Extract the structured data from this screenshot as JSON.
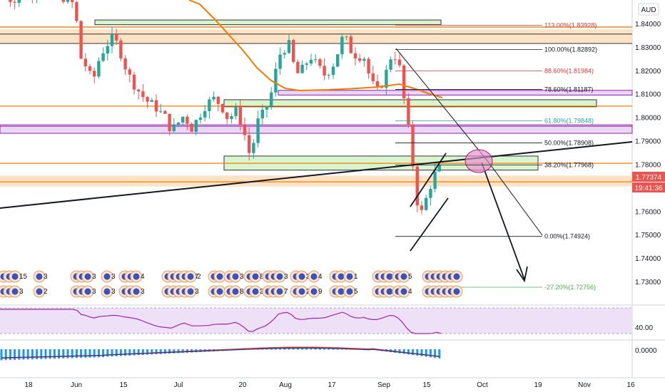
{
  "currency": "AUD",
  "last_price": "1.77374",
  "countdown": "19:41:36",
  "colors": {
    "up": "#26a69a",
    "down": "#ef5350",
    "ma": "#f57c00",
    "hline": "#f57c00",
    "orange_zone": "#fde0c0",
    "green_zone": "#d8f5d0",
    "purple_zone": "#ead6f5",
    "rsi": "#9c27b0",
    "macd_hist": "#2196f3",
    "macd_line": "#e53935",
    "price_tag": "#ef5350",
    "fib_red": "#e53935",
    "fib_teal": "#26a69a",
    "fib_green": "#4caf50"
  },
  "chart_data": {
    "type": "candlestick",
    "currency": "AUD",
    "y_ticks": [
      "1.84000",
      "1.83000",
      "1.82000",
      "1.81000",
      "1.80000",
      "1.79000",
      "1.78000",
      "1.77000",
      "1.76000",
      "1.75000",
      "1.74000",
      "1.73000"
    ],
    "ylim": [
      1.7255,
      1.8465
    ],
    "x_labels": [
      "18",
      "Jun",
      "15",
      "Jul",
      "20",
      "Aug",
      "17",
      "Sep",
      "15",
      "Oct",
      "19",
      "Nov",
      "16"
    ],
    "fib_levels": [
      {
        "ratio": "113.00%",
        "price": "1.83928",
        "color": "red"
      },
      {
        "ratio": "100.00%",
        "price": "1.82892",
        "color": "black"
      },
      {
        "ratio": "88.60%",
        "price": "1.81984",
        "color": "red"
      },
      {
        "ratio": "78.60%",
        "price": "1.81187",
        "color": "black"
      },
      {
        "ratio": "61.80%",
        "price": "1.79848",
        "color": "teal"
      },
      {
        "ratio": "50.00%",
        "price": "1.78908",
        "color": "black"
      },
      {
        "ratio": "38.20%",
        "price": "1.77968",
        "color": "black"
      },
      {
        "ratio": "0.00%",
        "price": "1.74924",
        "color": "black"
      },
      {
        "ratio": "-27.20%",
        "price": "1.72756",
        "color": "green"
      }
    ],
    "rsi": {
      "level": "40.00"
    },
    "macd": {
      "level": "0.0000"
    },
    "event_numbers": [
      "2",
      "3",
      "15",
      "3",
      "3",
      "3",
      "3",
      "2",
      "2",
      "3",
      "3",
      "3",
      "2",
      "3",
      "3",
      "3",
      "2",
      "3",
      "4",
      "2",
      "2",
      "3",
      "2",
      "3",
      "3",
      "102",
      "7",
      "4",
      "5",
      "3",
      "5",
      "3",
      "4",
      "2",
      "3",
      "7",
      "5",
      "3",
      "7",
      "8",
      "2",
      "8",
      "3",
      "3",
      "3",
      "3",
      "3",
      "7",
      "5",
      "7",
      "2",
      "3",
      "5",
      "2",
      "4",
      "9",
      "2",
      "5",
      "0",
      "2",
      "1",
      "5",
      "5",
      "4",
      "2",
      "4",
      "3",
      "2",
      "5",
      "5",
      "1",
      "4",
      "3",
      "3"
    ]
  }
}
